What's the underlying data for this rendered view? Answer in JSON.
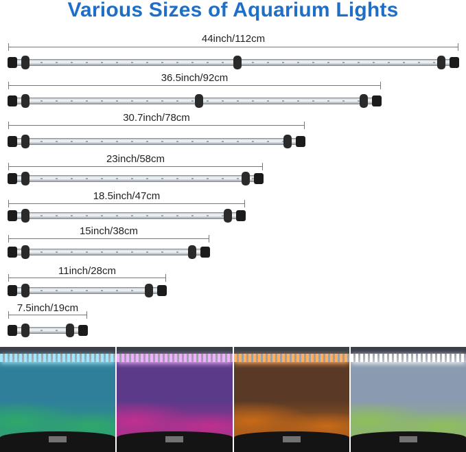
{
  "title": "Various Sizes of Aquarium Lights",
  "sizes": [
    {
      "label": "44inch/112cm"
    },
    {
      "label": "36.5inch/92cm"
    },
    {
      "label": "30.7inch/78cm"
    },
    {
      "label": "23inch/58cm"
    },
    {
      "label": "18.5inch/47cm"
    },
    {
      "label": "15inch/38cm"
    },
    {
      "label": "11inch/28cm"
    },
    {
      "label": "7.5inch/19cm"
    }
  ],
  "photos": [
    {
      "color_name": "blue",
      "light": "#9fe8ff",
      "water": "#2f7f9a",
      "plants": "#2fa86a"
    },
    {
      "color_name": "purple",
      "light": "#f0b0ff",
      "water": "#5c3a8a",
      "plants": "#c0308f"
    },
    {
      "color_name": "orange",
      "light": "#ffb060",
      "water": "#5a3a26",
      "plants": "#c86a18"
    },
    {
      "color_name": "white",
      "light": "#ffffff",
      "water": "#8a9ab0",
      "plants": "#8fbf5a"
    }
  ]
}
